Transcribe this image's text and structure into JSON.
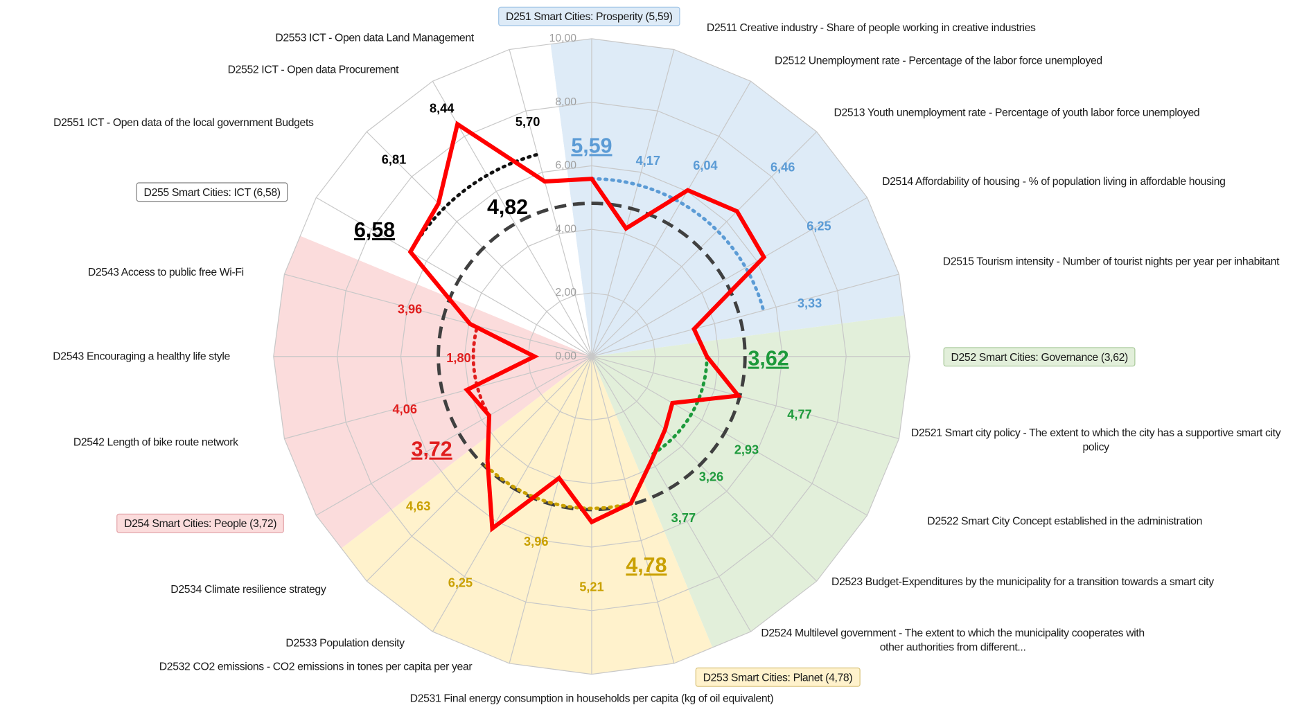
{
  "chart_data": {
    "type": "radar",
    "ylim": [
      0,
      10
    ],
    "yticks": [
      {
        "value": 0,
        "label": "0,00"
      },
      {
        "value": 2,
        "label": "2,00"
      },
      {
        "value": 4,
        "label": "4,00"
      },
      {
        "value": 6,
        "label": "6,00"
      },
      {
        "value": 8,
        "label": "8,00"
      },
      {
        "value": 10,
        "label": "10,00"
      }
    ],
    "line_color": "#ff0000",
    "grid": true,
    "overall": {
      "value": 4.82,
      "value_label": "4,82",
      "color": "#404040"
    },
    "groups": [
      {
        "name": "D251 Smart Cities: Prosperity (5,59)",
        "value": 5.59,
        "value_label": "5,59",
        "color": "#5b9bd5",
        "fill": "#deebf7",
        "border": "#9dc3e6",
        "indicators": [
          {
            "name": "D2511 Creative industry - Share of people working in creative industries",
            "value": 4.17,
            "value_label": "4,17"
          },
          {
            "name": "D2512 Unemployment rate - Percentage of the labor force unemployed",
            "value": 6.04,
            "value_label": "6,04"
          },
          {
            "name": "D2513 Youth unemployment rate - Percentage of youth labor force unemployed",
            "value": 6.46,
            "value_label": "6,46"
          },
          {
            "name": "D2514 Affordability of housing - % of population living in affordable housing",
            "value": 6.25,
            "value_label": "6,25"
          },
          {
            "name": "D2515 Tourism intensity - Number of tourist nights per year per inhabitant",
            "value": 3.33,
            "value_label": "3,33"
          }
        ]
      },
      {
        "name": "D252 Smart Cities: Governance (3,62)",
        "value": 3.62,
        "value_label": "3,62",
        "color": "#1e9a3c",
        "fill": "#e2efda",
        "border": "#a9c99a",
        "indicators": [
          {
            "name": "D2521 Smart city policy - The extent to which the city has a supportive smart city policy",
            "value": 4.77,
            "value_label": "4,77"
          },
          {
            "name": "D2522 Smart City Concept established in the administration",
            "value": 2.93,
            "value_label": "2,93"
          },
          {
            "name": "D2523 Budget-Expenditures by the municipality for a transition towards a smart city",
            "value": 3.26,
            "value_label": "3,26"
          },
          {
            "name": "D2524 Multilevel government - The extent to which the municipality cooperates with other authorities from different...",
            "value": 3.77,
            "value_label": "3,77"
          }
        ]
      },
      {
        "name": "D253 Smart Cities: Planet (4,78)",
        "value": 4.78,
        "value_label": "4,78",
        "color": "#c9a000",
        "fill": "#fff2cc",
        "border": "#d9c27a",
        "indicators": [
          {
            "name": "D2531 Final energy consumption in households per capita (kg of oil equivalent)",
            "value": 5.21,
            "value_label": "5,21"
          },
          {
            "name": "D2532 CO2 emissions - CO2 emissions in tones per capita per year",
            "value": 3.96,
            "value_label": "3,96"
          },
          {
            "name": "D2533 Population density",
            "value": 6.25,
            "value_label": "6,25"
          },
          {
            "name": "D2534 Climate resilience strategy",
            "value": 4.63,
            "value_label": "4,63"
          }
        ]
      },
      {
        "name": "D254 Smart Cities: People (3,72)",
        "value": 3.72,
        "value_label": "3,72",
        "color": "#e01e1e",
        "fill": "#fbdcdc",
        "border": "#e3a3a8",
        "indicators": [
          {
            "name": "D2542 Length of bike route network",
            "value": 4.06,
            "value_label": "4,06"
          },
          {
            "name": "D2543 Encouraging a healthy life style",
            "value": 1.8,
            "value_label": "1,80"
          },
          {
            "name": "D2543 Access to public free Wi-Fi",
            "value": 3.96,
            "value_label": "3,96"
          }
        ]
      },
      {
        "name": "D255 Smart Cities: ICT (6,58)",
        "value": 6.58,
        "value_label": "6,58",
        "color": "#000000",
        "fill": "#ffffff",
        "border": "#7f7f7f",
        "indicators": [
          {
            "name": "D2551 ICT - Open data of the local government Budgets",
            "value": 6.81,
            "value_label": "6,81"
          },
          {
            "name": "D2552 ICT - Open data Procurement",
            "value": 8.44,
            "value_label": "8,44"
          },
          {
            "name": "D2553 ICT - Open data Land Management",
            "value": 5.7,
            "value_label": "5,70"
          }
        ]
      }
    ]
  }
}
